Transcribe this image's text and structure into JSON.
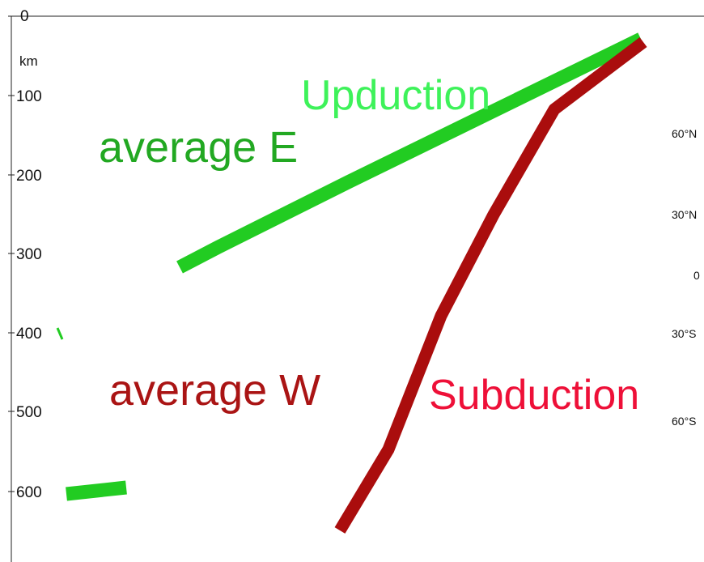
{
  "axis": {
    "unit": "km",
    "ticks": [
      "0",
      "100",
      "200",
      "300",
      "400",
      "500",
      "600"
    ]
  },
  "labels": {
    "upduction": "Upduction",
    "average_e": "average E",
    "average_w": "average W",
    "subduction": "Subduction"
  },
  "latitudes": [
    "60°N",
    "30°N",
    "0",
    "30°S",
    "60°S"
  ]
}
